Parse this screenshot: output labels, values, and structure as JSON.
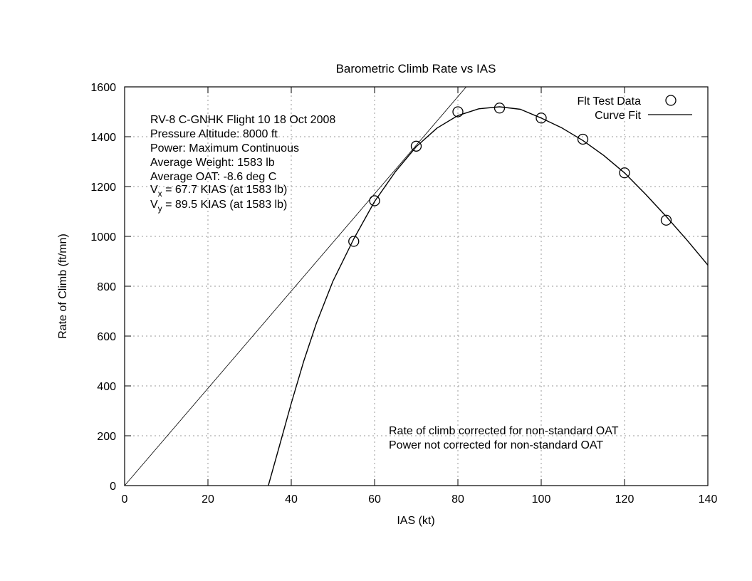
{
  "chart_data": {
    "type": "scatter",
    "title": "Barometric Climb Rate vs IAS",
    "xlabel": "IAS (kt)",
    "ylabel": "Rate of Climb (ft/mn)",
    "xlim": [
      0,
      140
    ],
    "ylim": [
      0,
      1600
    ],
    "x_ticks": [
      0,
      20,
      40,
      60,
      80,
      100,
      120,
      140
    ],
    "y_ticks": [
      0,
      200,
      400,
      600,
      800,
      1000,
      1200,
      1400,
      1600
    ],
    "grid": true,
    "legend_position": "top-right",
    "series": [
      {
        "name": "Flt Test Data",
        "kind": "points",
        "marker": "open-circle",
        "x": [
          55,
          60,
          70,
          80,
          90,
          100,
          110,
          120,
          130
        ],
        "y": [
          980,
          1143,
          1362,
          1500,
          1515,
          1475,
          1390,
          1255,
          1065
        ]
      },
      {
        "name": "Curve Fit",
        "kind": "line",
        "x": [
          34.5,
          37,
          40,
          43,
          46,
          50,
          55,
          60,
          65,
          70,
          75,
          80,
          85,
          90,
          95,
          100,
          105,
          110,
          115,
          120,
          125,
          130,
          135,
          140
        ],
        "y": [
          0,
          150,
          330,
          500,
          650,
          820,
          990,
          1140,
          1260,
          1360,
          1435,
          1485,
          1512,
          1520,
          1510,
          1475,
          1435,
          1385,
          1325,
          1255,
          1170,
          1080,
          985,
          885
        ]
      },
      {
        "name": "",
        "kind": "line",
        "style": "thin",
        "x": [
          0,
          82
        ],
        "y": [
          0,
          1600
        ]
      }
    ],
    "annotations_top": [
      "RV-8 C-GNHK Flight 10 18 Oct 2008",
      "Pressure Altitude: 8000 ft",
      "Power: Maximum Continuous",
      "Average Weight: 1583 lb",
      "Average OAT: -8.6 deg C"
    ],
    "vx_label": {
      "main": "V",
      "sub": "x",
      "rest": " = 67.7 KIAS (at 1583 lb)"
    },
    "vy_label": {
      "main": "V",
      "sub": "y",
      "rest": " = 89.5 KIAS (at 1583 lb)"
    },
    "annotations_bottom": [
      "Rate of climb corrected for non-standard OAT",
      "Power not corrected for non-standard OAT"
    ]
  }
}
